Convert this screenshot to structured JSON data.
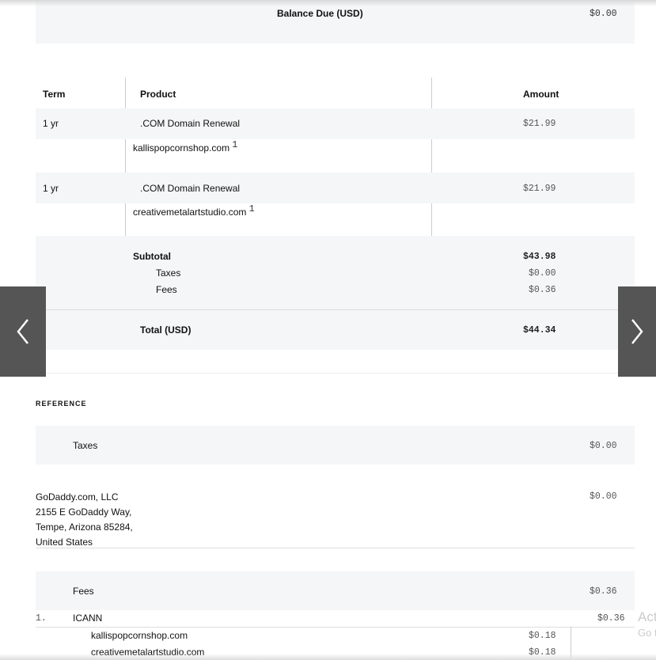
{
  "balance": {
    "label": "Balance Due (USD)",
    "amount": "$0.00"
  },
  "table": {
    "headers": {
      "term": "Term",
      "product": "Product",
      "amount": "Amount"
    },
    "rows": [
      {
        "term": "1 yr",
        "product": ".COM Domain Renewal",
        "amount": "$21.99",
        "domain": "kallispopcornshop.com",
        "footnote": "1"
      },
      {
        "term": "1 yr",
        "product": ".COM Domain Renewal",
        "amount": "$21.99",
        "domain": "creativemetalartstudio.com",
        "footnote": "1"
      }
    ]
  },
  "totals": {
    "subtotal_label": "Subtotal",
    "subtotal": "$43.98",
    "taxes_label": "Taxes",
    "taxes": "$0.00",
    "fees_label": "Fees",
    "fees": "$0.36",
    "total_label": "Total (USD)",
    "total": "$44.34"
  },
  "reference": {
    "heading": "REFERENCE",
    "taxes_label": "Taxes",
    "taxes": "$0.00",
    "company": [
      "GoDaddy.com, LLC",
      "2155 E GoDaddy Way,",
      "Tempe, Arizona 85284,",
      "United States"
    ],
    "company_amount": "$0.00",
    "fees_label": "Fees",
    "fees": "$0.36",
    "fee_index": "1.",
    "fee_name": "ICANN",
    "fee_amount": "$0.36",
    "fee_items": [
      {
        "domain": "kallispopcornshop.com",
        "amount": "$0.18"
      },
      {
        "domain": "creativemetalartstudio.com",
        "amount": "$0.18"
      }
    ]
  },
  "watermark": {
    "line1": "Activate Windows",
    "line2": "Go to Settings"
  },
  "icons": {
    "prev": "chevron-left-icon",
    "next": "chevron-right-icon"
  }
}
